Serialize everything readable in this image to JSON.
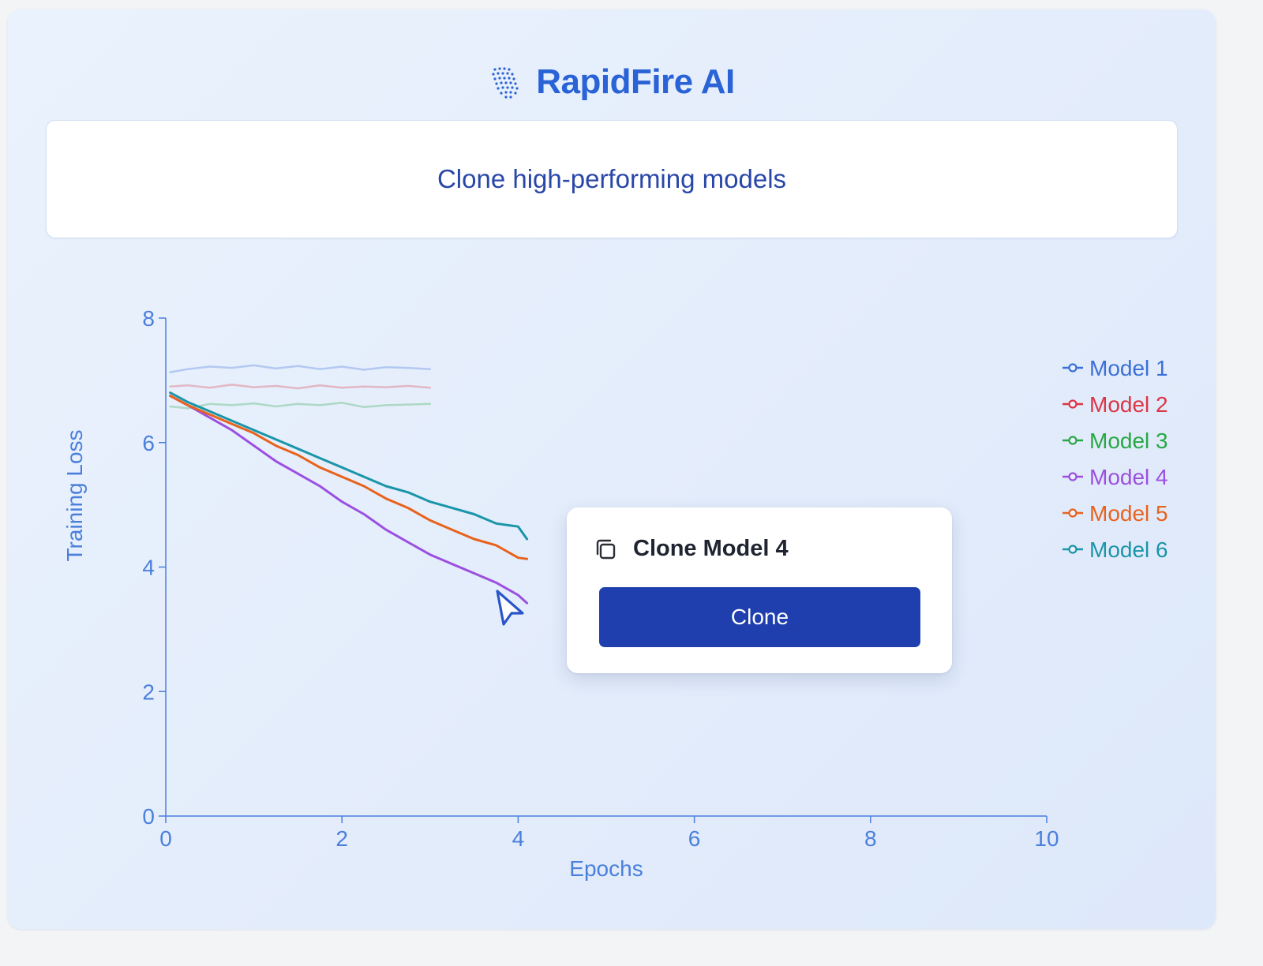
{
  "brand": {
    "name": "RapidFire AI",
    "icon": "dot-grid-logo-icon"
  },
  "banner": {
    "text": "Clone high-performing models"
  },
  "popup": {
    "title": "Clone Model 4",
    "icon": "copy-icon",
    "button_label": "Clone"
  },
  "colors": {
    "brand": "#2a63d6",
    "button": "#1e3fad",
    "axis": "#4a7fdc"
  },
  "chart_data": {
    "type": "line",
    "xlabel": "Epochs",
    "ylabel": "Training Loss",
    "xlim": [
      0,
      10
    ],
    "ylim": [
      0,
      8
    ],
    "xticks": [
      0,
      2,
      4,
      6,
      8,
      10
    ],
    "yticks": [
      0,
      2,
      4,
      6,
      8
    ],
    "grid": false,
    "legend_position": "right",
    "series": [
      {
        "name": "Model 1",
        "color": "#3b6fd8",
        "faded": true,
        "x": [
          0.05,
          0.25,
          0.5,
          0.75,
          1.0,
          1.25,
          1.5,
          1.75,
          2.0,
          2.25,
          2.5,
          2.75,
          3.0
        ],
        "y": [
          7.13,
          7.18,
          7.22,
          7.2,
          7.24,
          7.19,
          7.23,
          7.18,
          7.22,
          7.17,
          7.21,
          7.2,
          7.18
        ]
      },
      {
        "name": "Model 2",
        "color": "#dc3545",
        "faded": true,
        "x": [
          0.05,
          0.25,
          0.5,
          0.75,
          1.0,
          1.25,
          1.5,
          1.75,
          2.0,
          2.25,
          2.5,
          2.75,
          3.0
        ],
        "y": [
          6.9,
          6.92,
          6.88,
          6.93,
          6.89,
          6.91,
          6.87,
          6.92,
          6.88,
          6.9,
          6.89,
          6.91,
          6.88
        ]
      },
      {
        "name": "Model 3",
        "color": "#28a745",
        "faded": true,
        "x": [
          0.05,
          0.25,
          0.5,
          0.75,
          1.0,
          1.25,
          1.5,
          1.75,
          2.0,
          2.25,
          2.5,
          2.75,
          3.0
        ],
        "y": [
          6.58,
          6.55,
          6.62,
          6.6,
          6.63,
          6.58,
          6.62,
          6.6,
          6.64,
          6.57,
          6.6,
          6.61,
          6.62
        ]
      },
      {
        "name": "Model 4",
        "color": "#9b4fe0",
        "faded": false,
        "x": [
          0.05,
          0.25,
          0.5,
          0.75,
          1.0,
          1.25,
          1.5,
          1.75,
          2.0,
          2.25,
          2.5,
          2.75,
          3.0,
          3.25,
          3.5,
          3.75,
          4.0,
          4.1
        ],
        "y": [
          6.75,
          6.6,
          6.4,
          6.2,
          5.95,
          5.7,
          5.5,
          5.3,
          5.05,
          4.85,
          4.6,
          4.4,
          4.2,
          4.05,
          3.9,
          3.75,
          3.55,
          3.42
        ]
      },
      {
        "name": "Model 5",
        "color": "#e8621c",
        "faded": false,
        "x": [
          0.05,
          0.25,
          0.5,
          0.75,
          1.0,
          1.25,
          1.5,
          1.75,
          2.0,
          2.25,
          2.5,
          2.75,
          3.0,
          3.25,
          3.5,
          3.75,
          4.0,
          4.1
        ],
        "y": [
          6.75,
          6.6,
          6.45,
          6.3,
          6.15,
          5.95,
          5.8,
          5.6,
          5.45,
          5.3,
          5.1,
          4.95,
          4.75,
          4.6,
          4.45,
          4.35,
          4.15,
          4.13
        ]
      },
      {
        "name": "Model 6",
        "color": "#1a95a8",
        "faded": false,
        "x": [
          0.05,
          0.25,
          0.5,
          0.75,
          1.0,
          1.25,
          1.5,
          1.75,
          2.0,
          2.25,
          2.5,
          2.75,
          3.0,
          3.25,
          3.5,
          3.75,
          4.0,
          4.1
        ],
        "y": [
          6.8,
          6.65,
          6.5,
          6.35,
          6.2,
          6.05,
          5.9,
          5.75,
          5.6,
          5.45,
          5.3,
          5.2,
          5.05,
          4.95,
          4.85,
          4.7,
          4.65,
          4.45
        ]
      }
    ]
  }
}
